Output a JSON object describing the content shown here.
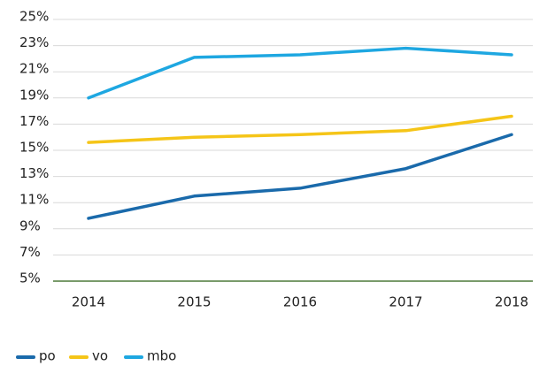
{
  "chart_data": {
    "type": "line",
    "categories": [
      "2014",
      "2015",
      "2016",
      "2017",
      "2018"
    ],
    "series": [
      {
        "name": "po",
        "color": "#1a6aab",
        "values": [
          9.8,
          11.5,
          12.1,
          13.6,
          16.2
        ]
      },
      {
        "name": "vo",
        "color": "#f5c518",
        "values": [
          15.6,
          16.0,
          16.2,
          16.5,
          17.6
        ]
      },
      {
        "name": "mbo",
        "color": "#1ea7e1",
        "values": [
          19.0,
          22.1,
          22.3,
          22.8,
          22.3
        ]
      }
    ],
    "ylim": [
      5,
      25
    ],
    "yticks": [
      {
        "value": 5,
        "label": "5%"
      },
      {
        "value": 7,
        "label": "7%"
      },
      {
        "value": 9,
        "label": "9%"
      },
      {
        "value": 11,
        "label": "11%"
      },
      {
        "value": 13,
        "label": "13%"
      },
      {
        "value": 15,
        "label": "15%"
      },
      {
        "value": 17,
        "label": "17%"
      },
      {
        "value": 19,
        "label": "19%"
      },
      {
        "value": 21,
        "label": "21%"
      },
      {
        "value": 23,
        "label": "23%"
      },
      {
        "value": 25,
        "label": "25%"
      }
    ],
    "grid": true,
    "legend": "bottom-left"
  }
}
